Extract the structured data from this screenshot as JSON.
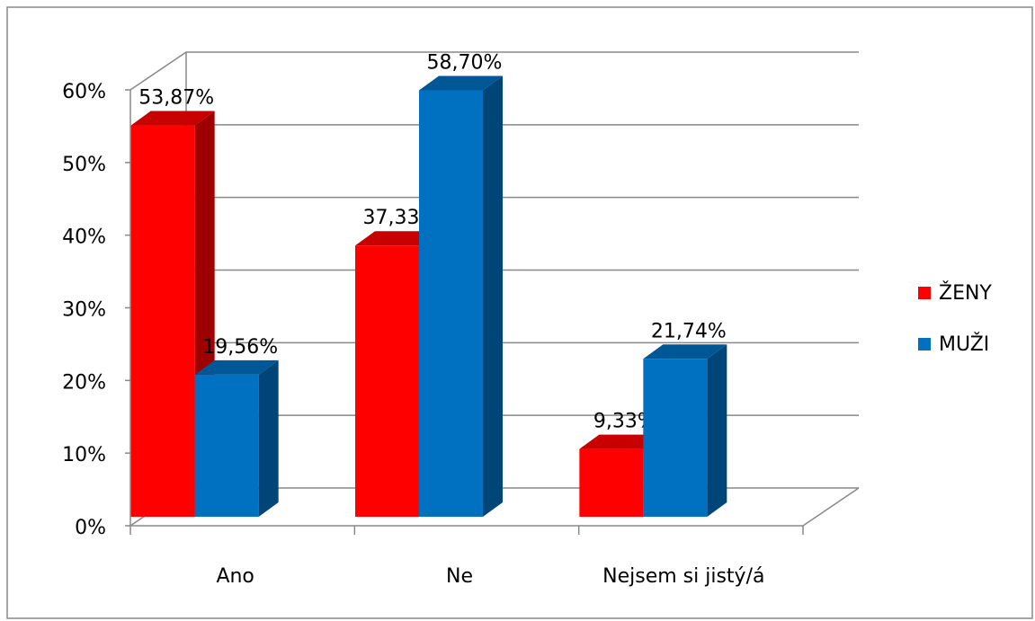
{
  "chart_data": {
    "type": "bar3d",
    "categories": [
      "Ano",
      "Ne",
      "Nejsem si jistý/á"
    ],
    "series": [
      {
        "name": "ŽENY",
        "color": "#ff0000",
        "values": [
          53.87,
          37.33,
          9.33
        ],
        "value_labels": [
          "53,87%",
          "37,33%",
          "9,33%"
        ]
      },
      {
        "name": "MUŽI",
        "color": "#0070c0",
        "values": [
          19.56,
          58.7,
          21.74
        ],
        "value_labels": [
          "19,56%",
          "58,70%",
          "21,74%"
        ]
      }
    ],
    "ylim": [
      0,
      60
    ],
    "yticks": [
      {
        "value": 0,
        "label": "0%"
      },
      {
        "value": 10,
        "label": "10%"
      },
      {
        "value": 20,
        "label": "20%"
      },
      {
        "value": 30,
        "label": "30%"
      },
      {
        "value": 40,
        "label": "40%"
      },
      {
        "value": 50,
        "label": "50%"
      },
      {
        "value": 60,
        "label": "60%"
      }
    ],
    "grid": true,
    "legend": "right"
  }
}
